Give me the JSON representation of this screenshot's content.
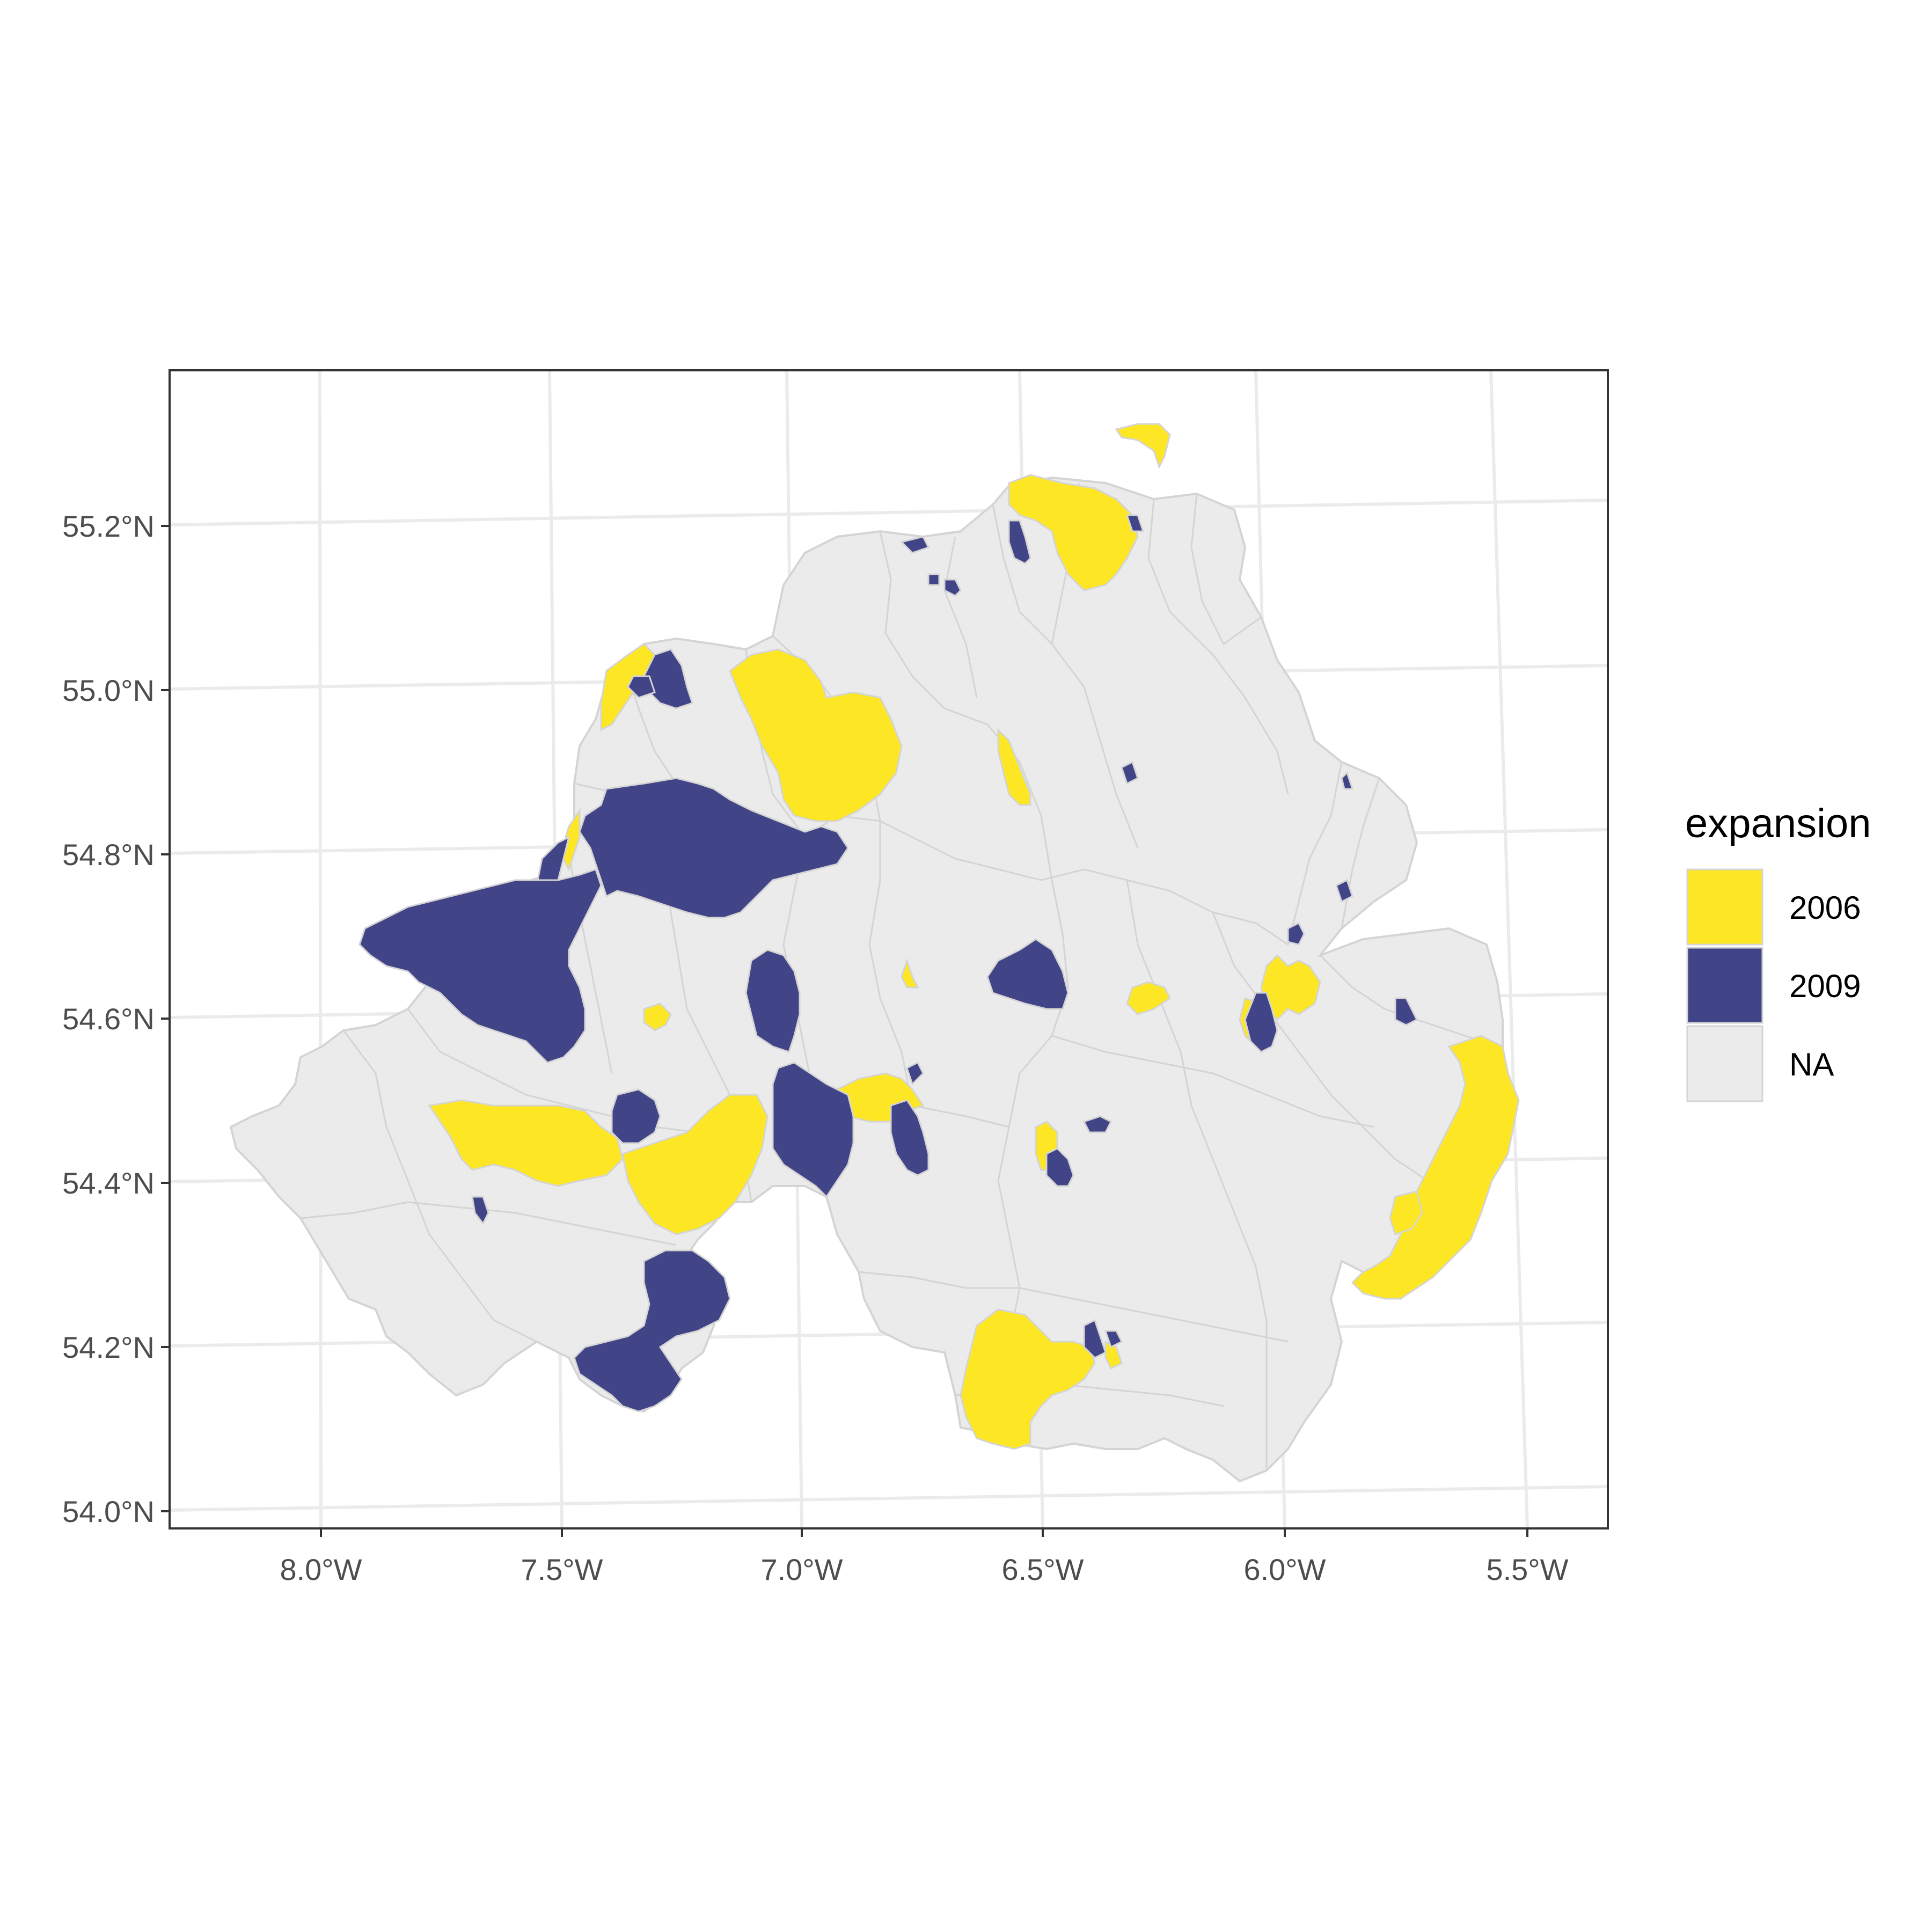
{
  "colors": {
    "expansion_2006": "#fde725",
    "expansion_2009": "#414487",
    "expansion_na": "#ebebeb",
    "region_border": "#d4d4d4",
    "graticule": "#ebebeb",
    "panel_border": "#333333",
    "tick_text": "#4d4d4d"
  },
  "map": {
    "x_ticks": [
      "8.0°W",
      "7.5°W",
      "7.0°W",
      "6.5°W",
      "6.0°W",
      "5.5°W"
    ],
    "y_ticks": [
      "55.2°N",
      "55.0°N",
      "54.8°N",
      "54.6°N",
      "54.4°N",
      "54.2°N",
      "54.0°N"
    ],
    "x_tick_values": [
      -8.0,
      -7.5,
      -7.0,
      -6.5,
      -6.0,
      -5.5
    ],
    "y_tick_values": [
      55.2,
      55.0,
      54.8,
      54.6,
      54.4,
      54.2,
      54.0
    ],
    "lon_range": [
      -8.3,
      -5.3
    ],
    "lat_range": [
      53.97,
      55.38
    ]
  },
  "legend": {
    "title": "expansion",
    "items": [
      {
        "label": "2006",
        "color_key": "expansion_2006"
      },
      {
        "label": "2009",
        "color_key": "expansion_2009"
      },
      {
        "label": "NA",
        "color_key": "expansion_na"
      }
    ]
  }
}
